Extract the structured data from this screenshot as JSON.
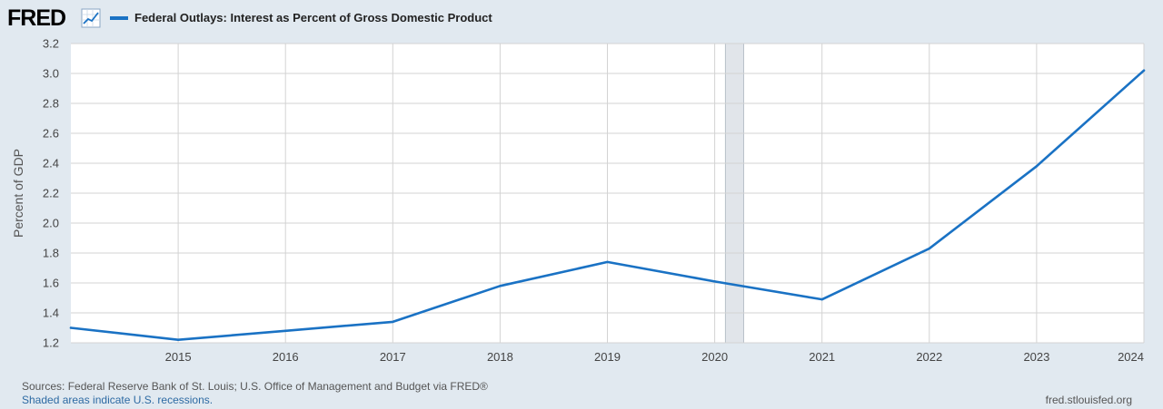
{
  "header": {
    "logo_text": "FRED",
    "logo_icon": "line-chart-icon",
    "legend_label": "Federal Outlays: Interest as Percent of Gross Domestic Product",
    "legend_color": "#1a72c4"
  },
  "chart_data": {
    "type": "line",
    "title": "Federal Outlays: Interest as Percent of Gross Domestic Product",
    "xlabel": "",
    "ylabel": "Percent of GDP",
    "x": [
      2014,
      2015,
      2016,
      2017,
      2018,
      2019,
      2020,
      2021,
      2022,
      2023,
      2024
    ],
    "series": [
      {
        "name": "Federal Outlays: Interest as Percent of Gross Domestic Product",
        "values": [
          1.3,
          1.22,
          1.28,
          1.34,
          1.58,
          1.74,
          1.61,
          1.49,
          1.83,
          2.38,
          3.02
        ],
        "color": "#1a72c4"
      }
    ],
    "xticks": [
      "2015",
      "2016",
      "2017",
      "2018",
      "2019",
      "2020",
      "2021",
      "2022",
      "2023",
      "2024"
    ],
    "yticks": [
      "1.2",
      "1.4",
      "1.6",
      "1.8",
      "2.0",
      "2.2",
      "2.4",
      "2.6",
      "2.8",
      "3.0",
      "3.2"
    ],
    "ylim": [
      1.2,
      3.2
    ],
    "xlim": [
      2014,
      2024
    ],
    "recession": {
      "start": 2020.1,
      "end": 2020.27,
      "color": "#e1e5ea"
    },
    "grid": true,
    "legend_position": "top-left"
  },
  "footer": {
    "sources": "Sources: Federal Reserve Bank of St. Louis; U.S. Office of Management and Budget via FRED®",
    "recession_note": "Shaded areas indicate U.S. recessions.",
    "credit": "fred.stlouisfed.org"
  }
}
